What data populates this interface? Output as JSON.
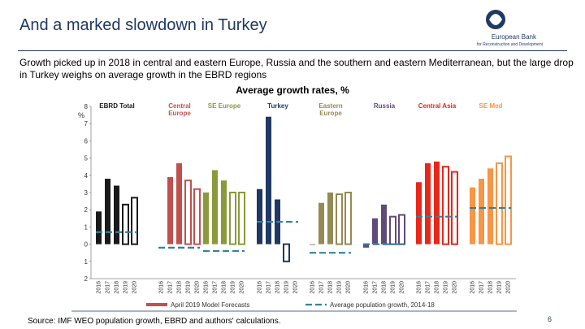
{
  "header": {
    "title": "And a marked slowdown in Turkey",
    "logo_line1": "European Bank",
    "logo_line2": "for Reconstruction and Development"
  },
  "body": {
    "text": "Growth picked up in 2018 in central and eastern Europe, Russia and the southern and eastern Mediterranean, but the large drop in Turkey weighs on average growth in the EBRD regions"
  },
  "chart_data": {
    "type": "bar",
    "title": "Average growth rates, %",
    "y_label": "%",
    "categories": [
      "2016",
      "2017",
      "2018",
      "2019",
      "2020"
    ],
    "ylim": [
      -2,
      8
    ],
    "yticks": [
      8,
      7,
      6,
      5,
      4,
      3,
      2,
      1,
      0,
      {
        "value": -1,
        "label": "1"
      },
      {
        "value": -2,
        "label": "2"
      }
    ],
    "series": [
      {
        "name": "EBRD Total",
        "color": "#1a1a1a",
        "values": [
          1.9,
          3.8,
          3.4,
          2.3,
          2.7
        ],
        "average": 0.7
      },
      {
        "name": "Central Europe",
        "color": "#c0504d",
        "values": [
          null,
          3.9,
          4.7,
          3.7,
          3.2
        ],
        "average": -0.2
      },
      {
        "name": "SE Europe",
        "color": "#8a9a3a",
        "values": [
          3.0,
          4.3,
          3.7,
          3.0,
          3.0
        ],
        "average": -0.4
      },
      {
        "name": "Turkey",
        "color": "#1f3864",
        "values": [
          3.2,
          7.4,
          2.6,
          -1.0,
          null
        ],
        "average": 1.3
      },
      {
        "name": "Eastern Europe",
        "color": "#948a54",
        "values": [
          0.0,
          2.4,
          3.0,
          2.9,
          3.0
        ],
        "average": -0.5
      },
      {
        "name": "Russia",
        "color": "#604a7b",
        "values": [
          -0.2,
          1.5,
          2.3,
          1.6,
          1.7
        ],
        "average": 0.0
      },
      {
        "name": "Central Asia",
        "color": "#e8261a",
        "values": [
          3.6,
          4.7,
          4.8,
          4.5,
          4.2
        ],
        "average": 1.6
      },
      {
        "name": "SE Med",
        "color": "#f79646",
        "values": [
          3.3,
          3.8,
          4.4,
          4.7,
          5.1
        ],
        "average": 2.1
      }
    ],
    "legend": {
      "bars": "April 2019 Model Forecasts",
      "bars_color": "#c0504d",
      "average": "Average population growth, 2014-18",
      "average_color": "#31849b"
    }
  },
  "footer": {
    "source": "Source: IMF WEO population growth, EBRD and authors' calculations.",
    "page": "6"
  }
}
